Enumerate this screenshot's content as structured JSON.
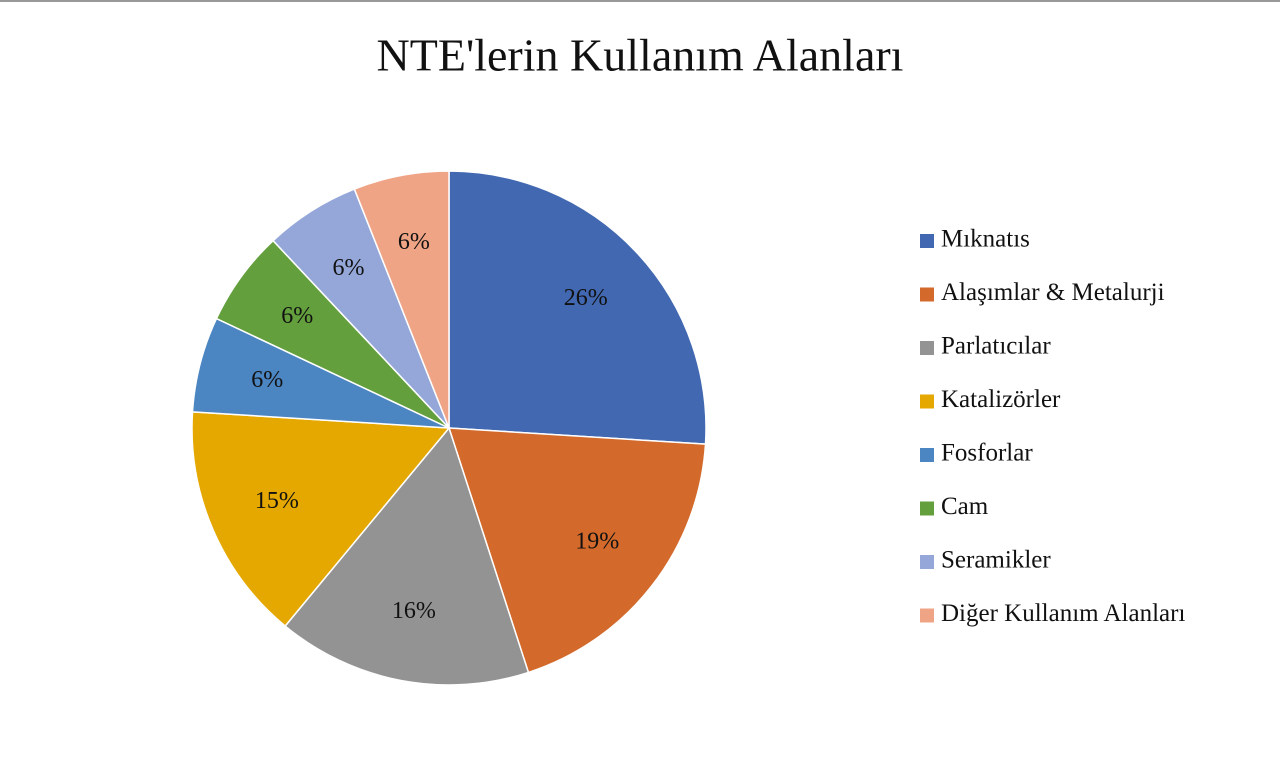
{
  "chart_data": {
    "type": "pie",
    "title": "NTE'lerin Kullanım Alanları",
    "categories": [
      "Mıknatıs",
      "Alaşımlar & Metalurji",
      "Parlatıcılar",
      "Katalizörler",
      "Fosforlar",
      "Cam",
      "Seramikler",
      "Diğer Kullanım Alanları"
    ],
    "values": [
      26,
      19,
      16,
      15,
      6,
      6,
      6,
      6
    ],
    "value_labels": [
      "26%",
      "19%",
      "16%",
      "15%",
      "6%",
      "6%",
      "6%",
      "6%"
    ],
    "colors": [
      "#4168b0",
      "#d36a2b",
      "#939393",
      "#e4a800",
      "#4b85c2",
      "#63a03d",
      "#94a7d8",
      "#f0a486"
    ],
    "legend": "right"
  }
}
